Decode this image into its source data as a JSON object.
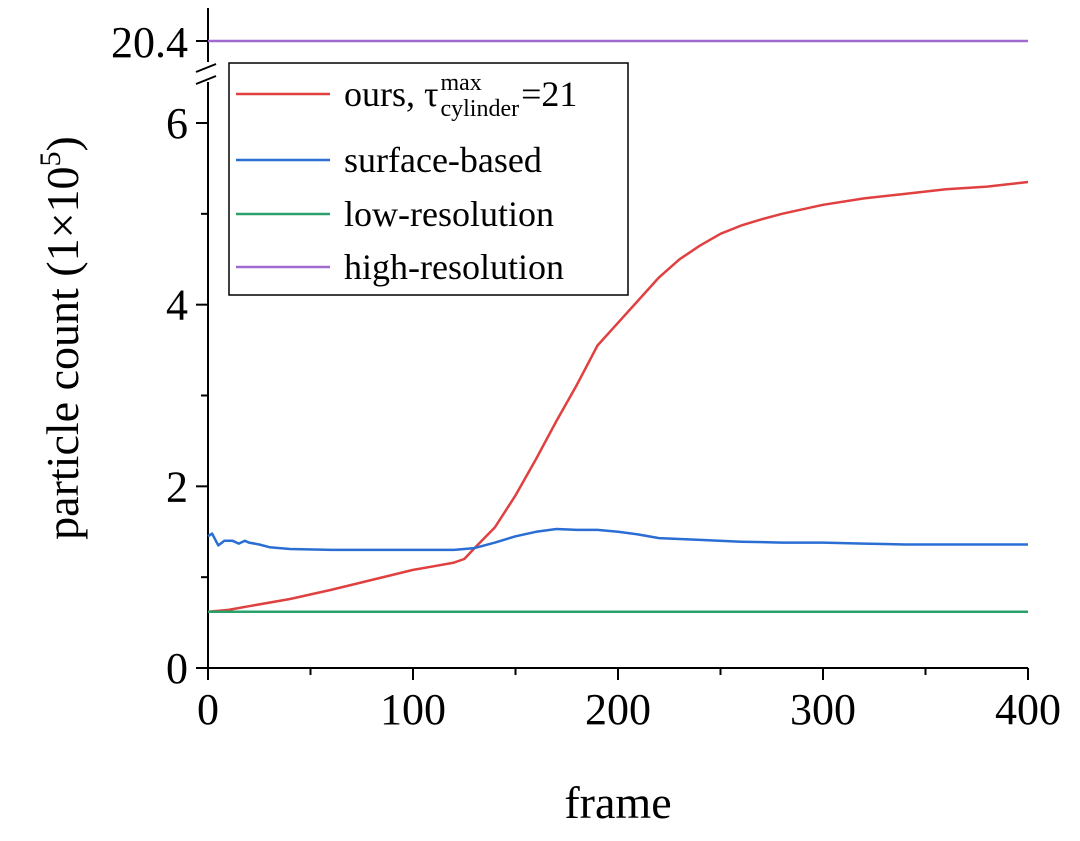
{
  "chart_data": {
    "type": "line",
    "xlabel": "frame",
    "ylabel_main": "particle count (1×10",
    "ylabel_sup": "5",
    "ylabel_close": ")",
    "xlim": [
      0,
      400
    ],
    "ylim_lower": [
      0,
      6.5
    ],
    "ylim_upper_break_value": 20.4,
    "axis_break": true,
    "grid": false,
    "legend_position": "top-left",
    "x_ticks": [
      0,
      100,
      200,
      300,
      400
    ],
    "x_tick_labels": [
      "0",
      "100",
      "200",
      "300",
      "400"
    ],
    "y_ticks": [
      0,
      2,
      4,
      6
    ],
    "y_tick_labels": [
      "0",
      "2",
      "4",
      "6"
    ],
    "y_upper_tick": 20.4,
    "y_upper_tick_label": "20.4",
    "series": [
      {
        "name": "ours, τ",
        "name_sup": "max",
        "name_sub": "cylinder",
        "name_suffix": "=21",
        "color": "#e04040",
        "x": [
          0,
          10,
          20,
          40,
          60,
          80,
          100,
          110,
          120,
          125,
          130,
          140,
          150,
          160,
          170,
          180,
          190,
          200,
          210,
          220,
          230,
          240,
          250,
          260,
          270,
          280,
          300,
          320,
          340,
          360,
          380,
          400
        ],
        "y": [
          0.62,
          0.64,
          0.68,
          0.76,
          0.86,
          0.97,
          1.08,
          1.12,
          1.16,
          1.2,
          1.32,
          1.55,
          1.9,
          2.3,
          2.72,
          3.12,
          3.55,
          3.8,
          4.05,
          4.3,
          4.5,
          4.65,
          4.78,
          4.87,
          4.94,
          5.0,
          5.1,
          5.17,
          5.22,
          5.27,
          5.3,
          5.35
        ]
      },
      {
        "name": "surface-based",
        "color": "#2a6ed4",
        "x": [
          0,
          2,
          5,
          8,
          12,
          15,
          18,
          20,
          25,
          30,
          40,
          60,
          80,
          100,
          120,
          130,
          140,
          150,
          160,
          170,
          180,
          190,
          200,
          210,
          220,
          240,
          260,
          280,
          300,
          320,
          340,
          360,
          380,
          400
        ],
        "y": [
          1.45,
          1.48,
          1.35,
          1.4,
          1.4,
          1.37,
          1.4,
          1.38,
          1.36,
          1.33,
          1.31,
          1.3,
          1.3,
          1.3,
          1.3,
          1.32,
          1.38,
          1.45,
          1.5,
          1.53,
          1.52,
          1.52,
          1.5,
          1.47,
          1.43,
          1.41,
          1.39,
          1.38,
          1.38,
          1.37,
          1.36,
          1.36,
          1.36,
          1.36
        ]
      },
      {
        "name": "low-resolution",
        "color": "#2aa06a",
        "x": [
          0,
          400
        ],
        "y": [
          0.62,
          0.62
        ]
      },
      {
        "name": "high-resolution",
        "color": "#a06ad0",
        "x": [
          0,
          400
        ],
        "y": [
          20.4,
          20.4
        ],
        "on_upper_segment": true
      }
    ]
  }
}
